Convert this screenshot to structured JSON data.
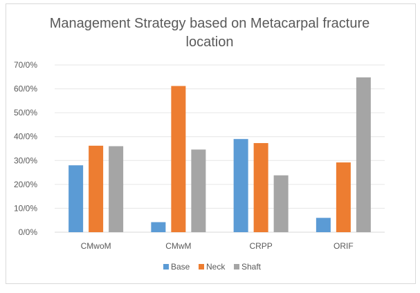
{
  "chart_data": {
    "type": "bar",
    "title_lines": [
      "Management Strategy based on Metacarpal fracture",
      "location"
    ],
    "xlabel": "",
    "ylabel": "",
    "categories": [
      "CMwoM",
      "CMwM",
      "CRPP",
      "ORIF"
    ],
    "series": [
      {
        "name": "Base",
        "color": "#5b9bd5",
        "values": [
          28,
          4.2,
          39,
          6
        ]
      },
      {
        "name": "Neck",
        "color": "#ed7d31",
        "values": [
          36.2,
          61.2,
          37.3,
          29.2
        ]
      },
      {
        "name": "Shaft",
        "color": "#a5a5a5",
        "values": [
          36,
          34.6,
          23.8,
          64.8
        ]
      }
    ],
    "ylim": [
      0,
      70
    ],
    "yticks": [
      0,
      10,
      20,
      30,
      40,
      50,
      60,
      70
    ],
    "ytick_labels": [
      "0/0%",
      "10/0%",
      "20/0%",
      "30/0%",
      "40/0%",
      "50/0%",
      "60/0%",
      "70/0%"
    ],
    "grid": true,
    "legend_position": "bottom"
  }
}
